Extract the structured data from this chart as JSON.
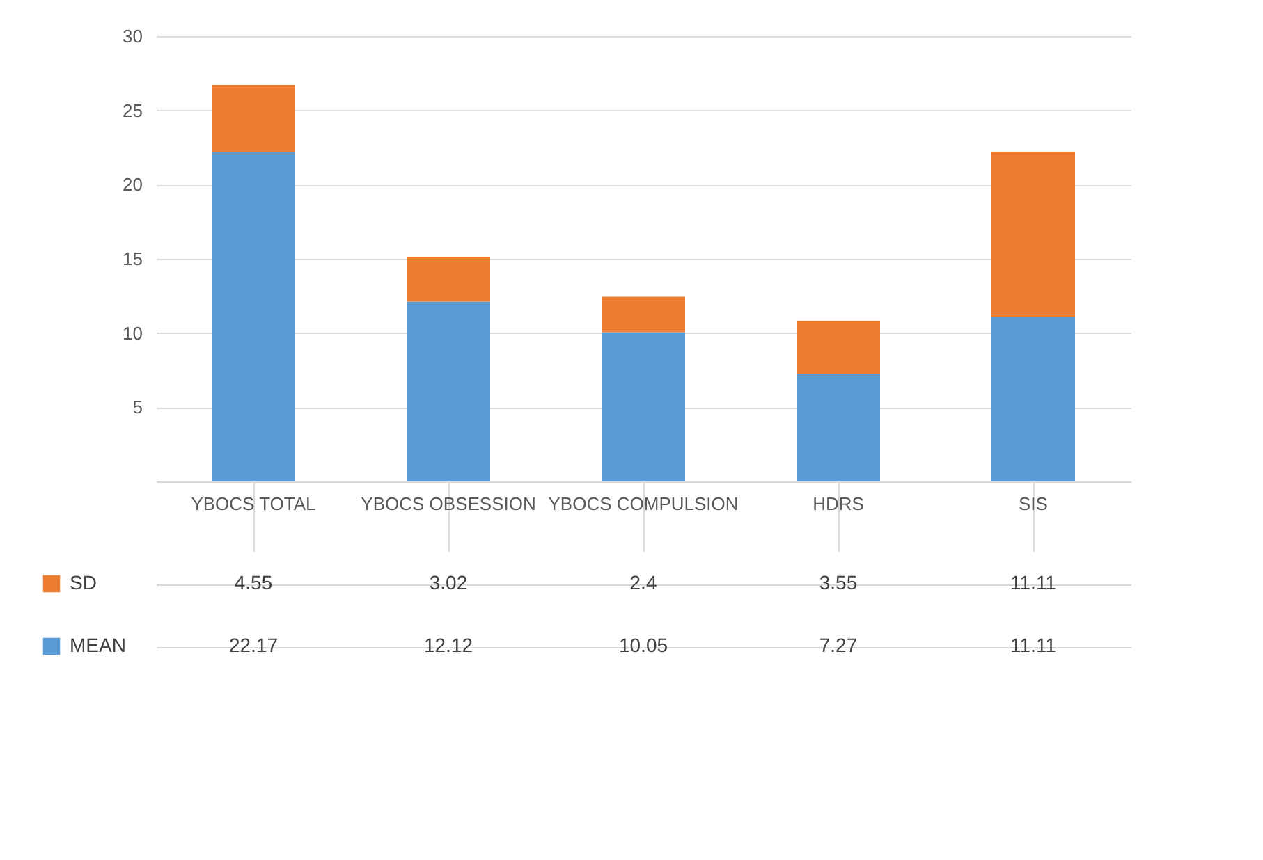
{
  "chart_data": {
    "type": "bar",
    "stacked": true,
    "categories": [
      "YBOCS TOTAL",
      "YBOCS OBSESSION",
      "YBOCS COMPULSION",
      "HDRS",
      "SIS"
    ],
    "series": [
      {
        "name": "MEAN",
        "color": "#5b9bd5",
        "values": [
          22.17,
          12.12,
          10.05,
          7.27,
          11.11
        ]
      },
      {
        "name": "SD",
        "color": "#ed7d31",
        "values": [
          4.55,
          3.02,
          2.4,
          3.55,
          11.11
        ]
      }
    ],
    "ylim": [
      0,
      30
    ],
    "yticks": [
      5,
      10,
      15,
      20,
      25,
      30
    ],
    "grid": "y",
    "legend": "bottom left",
    "data_labels": true
  }
}
